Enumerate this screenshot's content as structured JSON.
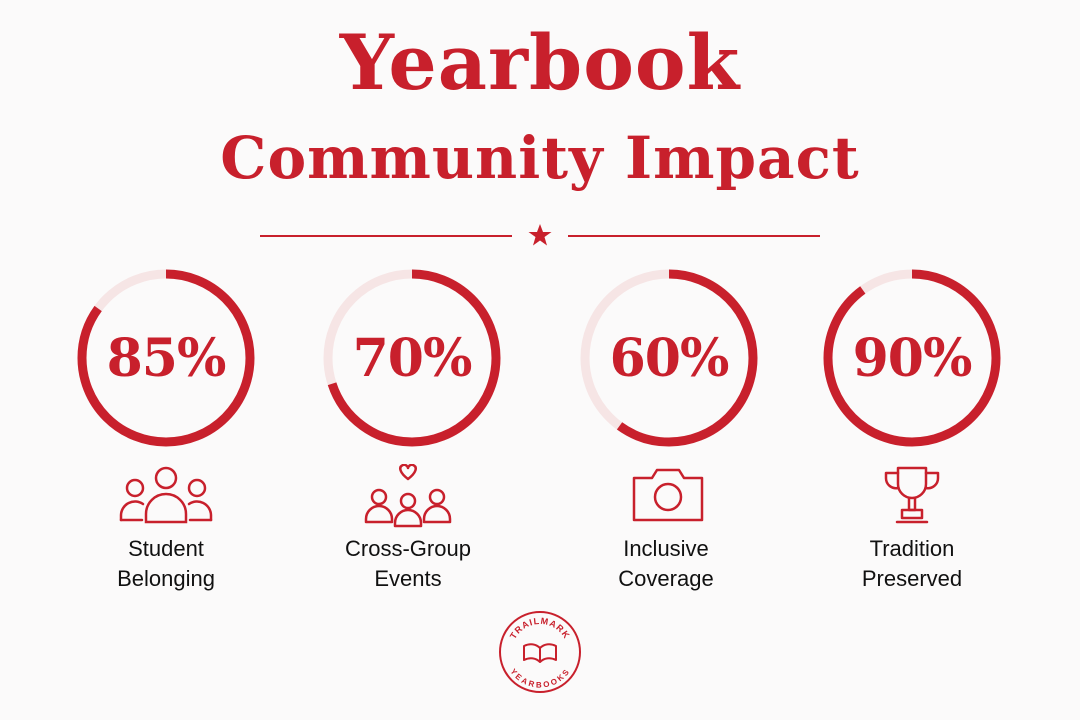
{
  "title_line1": "Yearbook",
  "title_line2": "Community Impact",
  "colors": {
    "accent": "#c8202c",
    "track": "#f6e5e5",
    "text": "#111111"
  },
  "stats": [
    {
      "value": 85,
      "value_text": "85%",
      "label_line1": "Student",
      "label_line2": "Belonging",
      "icon": "group-icon"
    },
    {
      "value": 70,
      "value_text": "70%",
      "label_line1": "Cross-Group",
      "label_line2": "Events",
      "icon": "group-heart-icon"
    },
    {
      "value": 60,
      "value_text": "60%",
      "label_line1": "Inclusive",
      "label_line2": "Coverage",
      "icon": "camera-icon"
    },
    {
      "value": 90,
      "value_text": "90%",
      "label_line1": "Tradition",
      "label_line2": "Preserved",
      "icon": "trophy-icon"
    }
  ],
  "logo": {
    "top_text": "TRAILMARK",
    "bottom_text": "YEARBOOKS"
  }
}
